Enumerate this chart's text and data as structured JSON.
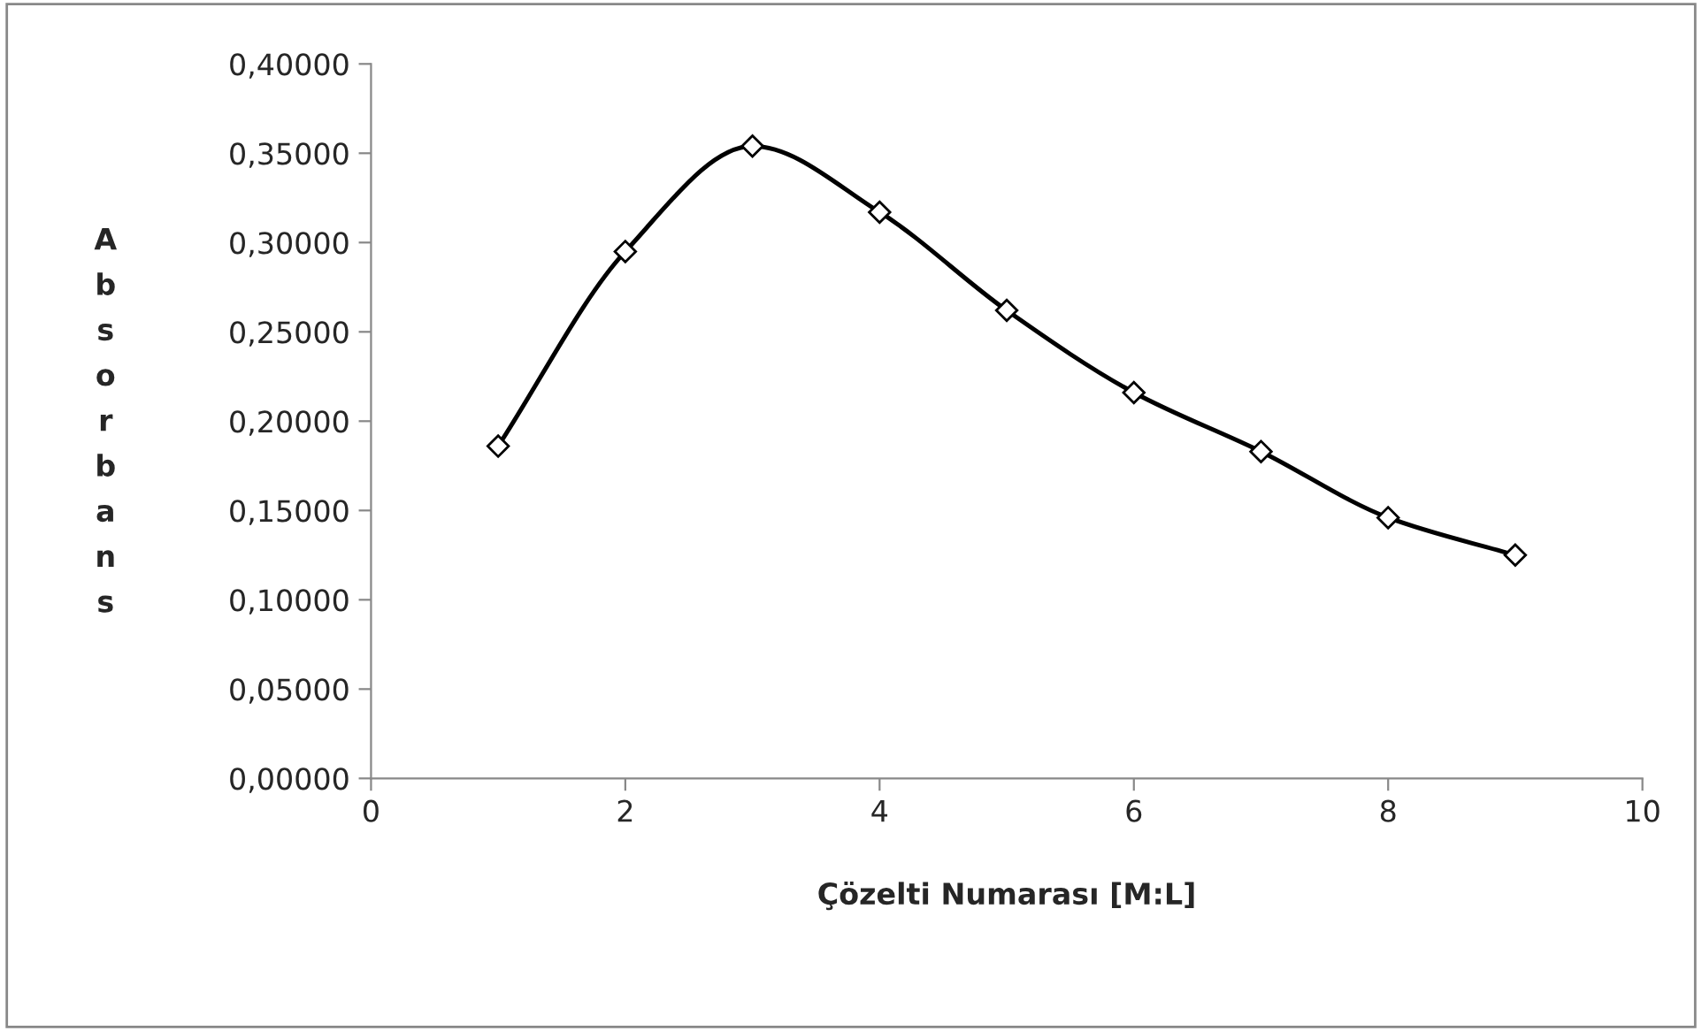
{
  "chart_data": {
    "type": "line",
    "xlabel": "Çözelti Numarası [M:L]",
    "ylabel": "Absorbans",
    "x": [
      1,
      2,
      3,
      4,
      5,
      6,
      7,
      8,
      9
    ],
    "series": [
      {
        "color": "#000000",
        "values": [
          0.186,
          0.295,
          0.354,
          0.317,
          0.262,
          0.216,
          0.183,
          0.146,
          0.125
        ]
      }
    ],
    "marker": "diamond",
    "line_style": "solid",
    "grid": false,
    "legend": false,
    "xlim": [
      0,
      10
    ],
    "xticks": [
      0,
      2,
      4,
      6,
      8,
      10
    ],
    "ylim": [
      0,
      0.4
    ],
    "yticks": [
      {
        "value": 0,
        "label": "0,00000"
      },
      {
        "value": 0.05,
        "label": "0,05000"
      },
      {
        "value": 0.1,
        "label": "0,10000"
      },
      {
        "value": 0.15,
        "label": "0,15000"
      },
      {
        "value": 0.2,
        "label": "0,20000"
      },
      {
        "value": 0.25,
        "label": "0,25000"
      },
      {
        "value": 0.3,
        "label": "0,30000"
      },
      {
        "value": 0.35,
        "label": "0,35000"
      },
      {
        "value": 0.4,
        "label": "0,40000"
      }
    ]
  }
}
